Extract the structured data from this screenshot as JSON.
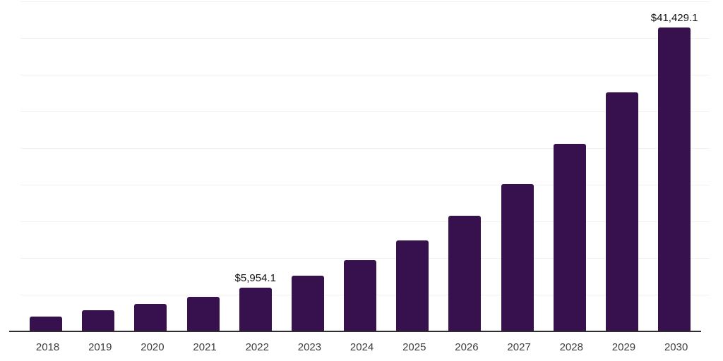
{
  "chart_data": {
    "type": "bar",
    "title": "",
    "xlabel": "",
    "ylabel": "",
    "categories": [
      "2018",
      "2019",
      "2020",
      "2021",
      "2022",
      "2023",
      "2024",
      "2025",
      "2026",
      "2027",
      "2028",
      "2029",
      "2030"
    ],
    "values": [
      1990,
      2900,
      3750,
      4720,
      5954.1,
      7620,
      9690,
      12380,
      15800,
      20050,
      25600,
      32630,
      41429.1
    ],
    "data_labels": [
      "",
      "",
      "",
      "",
      "$5,954.1",
      "",
      "",
      "",
      "",
      "",
      "",
      "",
      "$41,429.1"
    ],
    "ylim": [
      0,
      45000
    ],
    "gridline_step": 5000,
    "grid": "horizontal-only",
    "y_axis_tick_labels": "none",
    "legend": "none",
    "colors": {
      "bar": "#36114e",
      "data_label_text": "#111111",
      "axis_label_text": "#3d3d3d",
      "gridline": "#f2f2f2",
      "axis_line": "#2e2e2e",
      "background": "#ffffff"
    }
  }
}
